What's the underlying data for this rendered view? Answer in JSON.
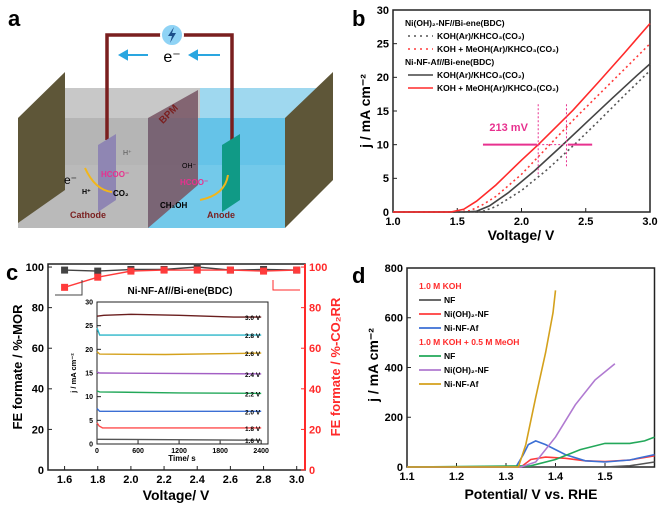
{
  "panel_a": {
    "label": "a",
    "electron_label": "e⁻",
    "membrane_label": "BPM",
    "cathode_label": "Cathode",
    "anode_label": "Anode",
    "cathode_e": "e⁻",
    "cathode_product": "HCOO⁻",
    "cathode_h": "H⁺",
    "cathode_co2": "CO₂",
    "hplus": "H⁺",
    "ohminus": "OH⁻",
    "anode_product": "HCOO⁻",
    "anode_reactant": "CH₃OH",
    "icons": [
      "power-source-icon",
      "arrow-left-icon"
    ],
    "colors": {
      "wire": "#7a1f1f",
      "cathode_electrolyte": "#b9b9b9",
      "anode_electrolyte": "#5bbfe6",
      "membrane": "#7b5a68",
      "anode_electrode": "#109a86",
      "cathode_electrode": "#8f86b3",
      "product": "#e8318f"
    }
  },
  "chart_data": [
    {
      "panel": "b",
      "type": "line",
      "xlabel": "Voltage/ V",
      "ylabel": "j / mA cm⁻²",
      "xlim": [
        1.0,
        3.0
      ],
      "ylim": [
        0,
        30
      ],
      "xticks": [
        "1.0",
        "1.5",
        "2.0",
        "2.5",
        "3.0"
      ],
      "yticks": [
        "0",
        "5",
        "10",
        "15",
        "20",
        "25",
        "30"
      ],
      "legend_groups": [
        "Ni(OH)₂-NF//Bi-ene(BDC)",
        "Ni-NF-Af//Bi-ene(BDC)"
      ],
      "legend_placement": "top-left",
      "annotation": "213 mV",
      "annotation_color": "#e8318f",
      "series": [
        {
          "name": "KOH(Ar)/KHCO₃(CO₂)",
          "group": 0,
          "color": "#555555",
          "style": "dotted",
          "x": [
            1.0,
            1.6,
            1.7,
            1.8,
            2.0,
            2.2,
            2.4,
            2.6,
            2.8,
            3.0
          ],
          "y": [
            0,
            0,
            0.1,
            0.8,
            3.2,
            6.3,
            9.8,
            13.5,
            17.3,
            21
          ]
        },
        {
          "name": "KOH + MeOH(Ar)/KHCO₃(CO₂)",
          "group": 0,
          "color": "#ff3b3b",
          "style": "dotted",
          "x": [
            1.0,
            1.5,
            1.6,
            1.7,
            1.8,
            2.0,
            2.2,
            2.4,
            2.6,
            2.8,
            3.0
          ],
          "y": [
            0,
            0,
            0.2,
            1.1,
            2.3,
            5.6,
            9.6,
            13.6,
            17.4,
            21.2,
            25
          ]
        },
        {
          "name": "KOH(Ar)/KHCO₃(CO₂)",
          "group": 1,
          "color": "#444444",
          "style": "solid",
          "x": [
            1.0,
            1.55,
            1.65,
            1.75,
            1.9,
            2.1,
            2.3,
            2.5,
            2.7,
            2.9,
            3.0
          ],
          "y": [
            0,
            0,
            0.1,
            0.9,
            2.9,
            6.1,
            9.6,
            13.2,
            16.8,
            20.3,
            22
          ]
        },
        {
          "name": "KOH + MeOH(Ar)/KHCO₃(CO₂)",
          "group": 1,
          "color": "#ff2a2a",
          "style": "solid",
          "x": [
            1.0,
            1.45,
            1.55,
            1.65,
            1.8,
            2.0,
            2.13,
            2.4,
            2.6,
            2.8,
            3.0
          ],
          "y": [
            0,
            0,
            0.4,
            1.6,
            4.0,
            7.7,
            10,
            15.1,
            19.3,
            23.6,
            28
          ]
        }
      ]
    },
    {
      "panel": "c",
      "type": "line",
      "title": "Ni-NF-Af//Bi-ene(BDC)",
      "xlabel": "Voltage/ V",
      "ylabel_left": "FE formate / %-MOR",
      "ylabel_right": "FE formate / %-CO₂RR",
      "xlim": [
        1.5,
        3.05
      ],
      "ylim": [
        0,
        100
      ],
      "xticks": [
        "1.6",
        "1.8",
        "2.0",
        "2.2",
        "2.4",
        "2.6",
        "2.8",
        "3.0"
      ],
      "yticks": [
        "0",
        "20",
        "40",
        "60",
        "80",
        "100"
      ],
      "series": [
        {
          "name": "MOR",
          "axis": "left",
          "color": "#444444",
          "marker": "square",
          "x": [
            1.6,
            1.8,
            2.0,
            2.2,
            2.4,
            2.6,
            2.8,
            3.0
          ],
          "y": [
            98.5,
            98,
            98.8,
            98.8,
            100,
            98.5,
            98.8,
            98.5
          ]
        },
        {
          "name": "CO₂RR",
          "axis": "right",
          "color": "#ff3b3b",
          "marker": "square",
          "x": [
            1.6,
            1.8,
            2.0,
            2.2,
            2.4,
            2.6,
            2.8,
            3.0
          ],
          "y": [
            90,
            95,
            98,
            98.5,
            98.5,
            98.5,
            98,
            98.5
          ]
        }
      ],
      "inset": {
        "type": "line",
        "xlabel": "Time/ s",
        "ylabel": "j / mA cm⁻²",
        "xlim": [
          0,
          2500
        ],
        "ylim": [
          0,
          30
        ],
        "xticks": [
          "0",
          "600",
          "1200",
          "1800",
          "2400"
        ],
        "yticks": [
          "0",
          "5",
          "10",
          "15",
          "20",
          "25",
          "30"
        ],
        "series": [
          {
            "name": "1.6 V",
            "color": "#555555",
            "x": [
              0,
              2400
            ],
            "y": [
              1,
              0.8
            ]
          },
          {
            "name": "1.8 V",
            "color": "#ff4d4d",
            "x": [
              0,
              30,
              80,
              2400
            ],
            "y": [
              4.5,
              3.8,
              3.4,
              3.4
            ]
          },
          {
            "name": "2.0 V",
            "color": "#3b6fd4",
            "x": [
              0,
              40,
              2400
            ],
            "y": [
              7.5,
              6.9,
              6.9
            ]
          },
          {
            "name": "2.2 V",
            "color": "#23a85a",
            "x": [
              0,
              40,
              1200,
              2400
            ],
            "y": [
              11.2,
              11,
              10.8,
              10.7
            ]
          },
          {
            "name": "2.4 V",
            "color": "#a35fc4",
            "x": [
              0,
              40,
              2400
            ],
            "y": [
              15.2,
              15,
              14.8
            ]
          },
          {
            "name": "2.6 V",
            "color": "#d4a11c",
            "x": [
              0,
              40,
              1000,
              2400
            ],
            "y": [
              19.5,
              19,
              18.9,
              19.2
            ]
          },
          {
            "name": "2.8 V",
            "color": "#2bb6c9",
            "x": [
              0,
              40,
              2400
            ],
            "y": [
              24.5,
              23,
              23
            ]
          },
          {
            "name": "3.0 V",
            "color": "#6a1e1e",
            "x": [
              0,
              100,
              500,
              1200,
              2000,
              2400
            ],
            "y": [
              27,
              27.2,
              27.4,
              27.2,
              26.8,
              26.8
            ]
          }
        ]
      }
    },
    {
      "panel": "d",
      "type": "line",
      "xlabel": "Potential/ V vs. RHE",
      "ylabel": "j / mA cm⁻²",
      "xlim": [
        1.1,
        1.6
      ],
      "ylim": [
        0,
        800
      ],
      "xticks": [
        "1.1",
        "1.2",
        "1.3",
        "1.4",
        "1.5"
      ],
      "yticks": [
        "0",
        "200",
        "400",
        "600",
        "800"
      ],
      "legend_groups": [
        "1.0 M KOH",
        "1.0 M KOH + 0.5 M MeOH"
      ],
      "legend_group_color": "#ff2a2a",
      "legend_placement": "top-left",
      "series": [
        {
          "name": "NF",
          "group": 0,
          "color": "#555555",
          "x": [
            1.1,
            1.5,
            1.55,
            1.6
          ],
          "y": [
            0,
            0,
            5,
            20
          ]
        },
        {
          "name": "Ni(OH)₂-NF",
          "group": 0,
          "color": "#ff3b3b",
          "x": [
            1.1,
            1.33,
            1.35,
            1.38,
            1.42,
            1.46,
            1.5,
            1.55,
            1.6
          ],
          "y": [
            0,
            0,
            30,
            40,
            35,
            25,
            22,
            28,
            45
          ]
        },
        {
          "name": "Ni-NF-Af",
          "group": 0,
          "color": "#3b6fd4",
          "x": [
            1.1,
            1.32,
            1.335,
            1.345,
            1.36,
            1.38,
            1.42,
            1.46,
            1.5,
            1.55,
            1.6
          ],
          "y": [
            0,
            0,
            50,
            90,
            105,
            90,
            50,
            25,
            20,
            28,
            50
          ]
        },
        {
          "name": "NF",
          "group": 1,
          "color": "#23a85a",
          "x": [
            1.1,
            1.35,
            1.4,
            1.45,
            1.5,
            1.55,
            1.58,
            1.6
          ],
          "y": [
            0,
            5,
            30,
            70,
            95,
            95,
            105,
            120
          ]
        },
        {
          "name": "Ni(OH)₂-NF",
          "group": 1,
          "color": "#b07ad1",
          "x": [
            1.1,
            1.33,
            1.36,
            1.4,
            1.44,
            1.48,
            1.52
          ],
          "y": [
            0,
            0,
            20,
            120,
            250,
            350,
            415
          ]
        },
        {
          "name": "Ni-NF-Af",
          "group": 1,
          "color": "#d4a11c",
          "x": [
            1.1,
            1.325,
            1.34,
            1.36,
            1.38,
            1.395,
            1.4
          ],
          "y": [
            0,
            0,
            90,
            280,
            460,
            620,
            710
          ]
        }
      ]
    }
  ],
  "panel_labels": {
    "b": "b",
    "c": "c",
    "d": "d"
  }
}
